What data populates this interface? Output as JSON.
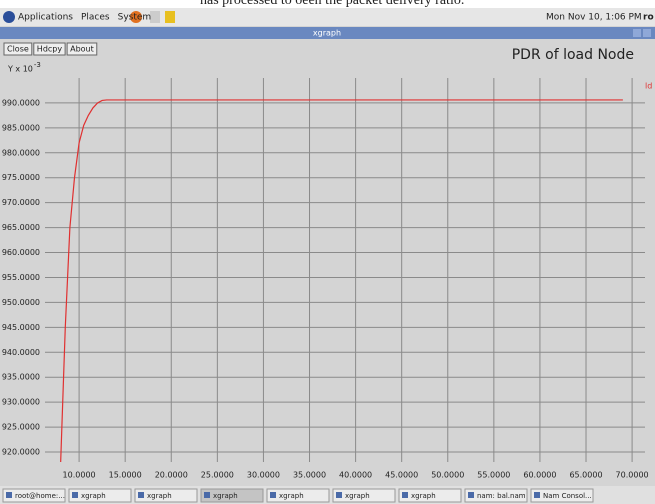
{
  "screen": {
    "caption": "has processed to oeen the packet delivery ratio.",
    "menus": [
      "Applications",
      "Places",
      "System"
    ],
    "clock": "Mon Nov 10, 1:06 PM",
    "user": "ro",
    "window_title": "xgraph",
    "buttons": [
      "Close",
      "Hdcpy",
      "About"
    ],
    "taskbar": [
      "root@home:...",
      "xgraph",
      "xgraph",
      "xgraph",
      "xgraph",
      "xgraph",
      "xgraph",
      "nam: bal.nam",
      "Nam Consol..."
    ]
  },
  "chart_data": {
    "type": "line",
    "title": "PDR of load Node",
    "ylabel": "Y x 10",
    "ylabel_exponent": "-3",
    "x": [
      8.0,
      8.5,
      9.0,
      9.5,
      10.0,
      10.5,
      11.0,
      11.5,
      12.0,
      12.5,
      13.0,
      69.0
    ],
    "series": [
      {
        "name": "ld t",
        "color": "#e03030",
        "values": [
          918,
          945,
          965,
          975,
          982,
          985.5,
          987.5,
          989,
          990,
          990.5,
          990.6,
          990.6
        ]
      }
    ],
    "xlim": [
      6.3,
      71.4
    ],
    "ylim": [
      918,
      995
    ],
    "xticks": [
      {
        "value": 10,
        "label": "10.0000"
      },
      {
        "value": 15,
        "label": "15.0000"
      },
      {
        "value": 20,
        "label": "20.0000"
      },
      {
        "value": 25,
        "label": "25.0000"
      },
      {
        "value": 30,
        "label": "30.0000"
      },
      {
        "value": 35,
        "label": "35.0000"
      },
      {
        "value": 40,
        "label": "40.0000"
      },
      {
        "value": 45,
        "label": "45.0000"
      },
      {
        "value": 50,
        "label": "50.0000"
      },
      {
        "value": 55,
        "label": "55.0000"
      },
      {
        "value": 60,
        "label": "60.0000"
      },
      {
        "value": 65,
        "label": "65.0000"
      },
      {
        "value": 70,
        "label": "70.0000"
      }
    ],
    "yticks": [
      {
        "value": 920,
        "label": "920.0000"
      },
      {
        "value": 925,
        "label": "925.0000"
      },
      {
        "value": 930,
        "label": "930.0000"
      },
      {
        "value": 935,
        "label": "935.0000"
      },
      {
        "value": 940,
        "label": "940.0000"
      },
      {
        "value": 945,
        "label": "945.0000"
      },
      {
        "value": 950,
        "label": "950.0000"
      },
      {
        "value": 955,
        "label": "955.0000"
      },
      {
        "value": 960,
        "label": "960.0000"
      },
      {
        "value": 965,
        "label": "965.0000"
      },
      {
        "value": 970,
        "label": "970.0000"
      },
      {
        "value": 975,
        "label": "975.0000"
      },
      {
        "value": 980,
        "label": "980.0000"
      },
      {
        "value": 985,
        "label": "985.0000"
      },
      {
        "value": 990,
        "label": "990.0000"
      }
    ],
    "grid": true
  }
}
